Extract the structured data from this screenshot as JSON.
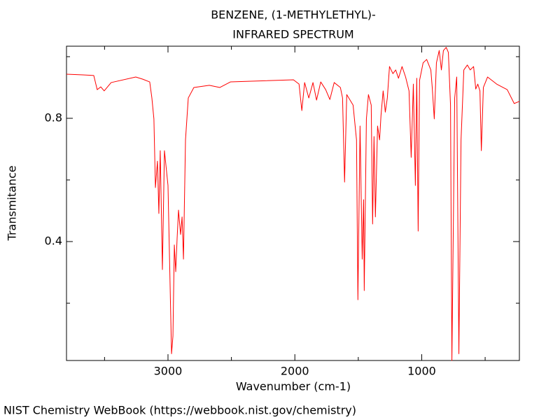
{
  "chart_data": {
    "type": "line",
    "title": "BENZENE, (1-METHYLETHYL)-",
    "subtitle": "INFRARED SPECTRUM",
    "x_label": "Wavenumber (cm-1)",
    "y_label": "Transmitance",
    "footer": "NIST Chemistry WebBook (https://webbook.nist.gov/chemistry)",
    "xlim": [
      3800,
      230
    ],
    "ylim": [
      0.014,
      1.034
    ],
    "xticks": [
      3000,
      2000,
      1000
    ],
    "yticks": [
      0.8,
      0.4
    ],
    "xticks_minor": [
      3500,
      2500,
      1500,
      500
    ],
    "yticks_minor": [
      1.0,
      0.6,
      0.2
    ],
    "grid": false,
    "series": [
      {
        "color": "#ff0000",
        "x": [
          3800,
          3668,
          3585,
          3558,
          3530,
          3503,
          3448,
          3254,
          3199,
          3144,
          3127,
          3111,
          3099,
          3083,
          3072,
          3061,
          3044,
          3028,
          3000,
          2972,
          2961,
          2950,
          2939,
          2928,
          2917,
          2901,
          2889,
          2878,
          2862,
          2840,
          2796,
          2674,
          2591,
          2508,
          2011,
          1967,
          1945,
          1923,
          1890,
          1857,
          1829,
          1796,
          1757,
          1724,
          1690,
          1641,
          1624,
          1608,
          1591,
          1541,
          1514,
          1503,
          1486,
          1469,
          1458,
          1453,
          1436,
          1420,
          1398,
          1387,
          1376,
          1365,
          1348,
          1332,
          1321,
          1304,
          1287,
          1271,
          1254,
          1227,
          1205,
          1183,
          1155,
          1127,
          1100,
          1083,
          1066,
          1050,
          1039,
          1028,
          1017,
          989,
          961,
          928,
          917,
          901,
          884,
          862,
          845,
          829,
          807,
          790,
          773,
          762,
          740,
          724,
          707,
          690,
          668,
          640,
          618,
          591,
          574,
          558,
          541,
          530,
          514,
          481,
          409,
          326,
          271,
          230
        ],
        "values": [
          0.943,
          0.941,
          0.939,
          0.893,
          0.902,
          0.889,
          0.916,
          0.934,
          0.927,
          0.918,
          0.866,
          0.798,
          0.575,
          0.661,
          0.491,
          0.695,
          0.309,
          0.695,
          0.582,
          0.036,
          0.093,
          0.389,
          0.302,
          0.411,
          0.502,
          0.423,
          0.48,
          0.343,
          0.73,
          0.866,
          0.9,
          0.907,
          0.9,
          0.918,
          0.925,
          0.911,
          0.825,
          0.916,
          0.866,
          0.916,
          0.859,
          0.918,
          0.893,
          0.861,
          0.916,
          0.9,
          0.866,
          0.593,
          0.877,
          0.843,
          0.73,
          0.211,
          0.775,
          0.343,
          0.536,
          0.241,
          0.798,
          0.877,
          0.843,
          0.457,
          0.741,
          0.48,
          0.775,
          0.73,
          0.809,
          0.889,
          0.82,
          0.866,
          0.968,
          0.945,
          0.957,
          0.93,
          0.968,
          0.934,
          0.889,
          0.673,
          0.911,
          0.582,
          0.93,
          0.434,
          0.923,
          0.98,
          0.991,
          0.957,
          0.9,
          0.798,
          0.98,
          1.02,
          0.957,
          1.02,
          1.03,
          1.014,
          0.843,
          0.014,
          0.866,
          0.934,
          0.036,
          0.73,
          0.957,
          0.973,
          0.957,
          0.968,
          0.895,
          0.911,
          0.889,
          0.695,
          0.9,
          0.934,
          0.911,
          0.893,
          0.848,
          0.855
        ]
      }
    ]
  }
}
